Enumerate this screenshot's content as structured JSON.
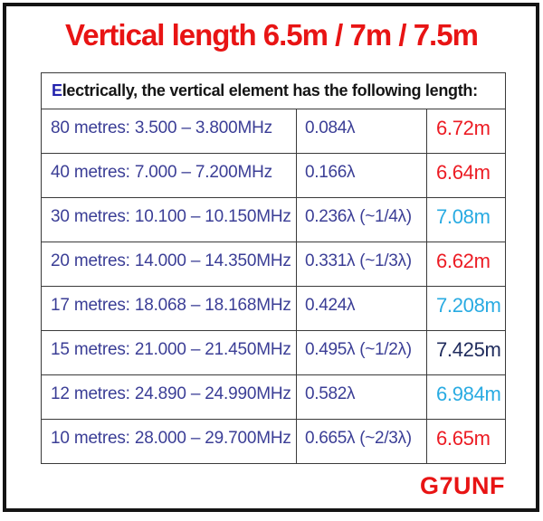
{
  "title": "Vertical length 6.5m / 7m / 7.5m",
  "header": {
    "first_letter": "E",
    "rest": "lectrically, the vertical element has the following length:"
  },
  "table": {
    "columns": [
      "band_and_frequency",
      "wavelength_fraction",
      "physical_length"
    ],
    "rows": [
      {
        "band": "80 metres: 3.500 – 3.800MHz",
        "lambda": "0.084λ",
        "length": "6.72m",
        "length_color": "#ec1c24"
      },
      {
        "band": "40 metres: 7.000 – 7.200MHz",
        "lambda": "0.166λ",
        "length": "6.64m",
        "length_color": "#ec1c24"
      },
      {
        "band": "30 metres: 10.100 – 10.150MHz",
        "lambda": "0.236λ (~1/4λ)",
        "length": "7.08m",
        "length_color": "#29abe2"
      },
      {
        "band": "20 metres: 14.000 – 14.350MHz",
        "lambda": "0.331λ (~1/3λ)",
        "length": "6.62m",
        "length_color": "#ec1c24"
      },
      {
        "band": "17 metres: 18.068 – 18.168MHz",
        "lambda": "0.424λ",
        "length": "7.208m",
        "length_color": "#29abe2"
      },
      {
        "band": "15 metres: 21.000 – 21.450MHz",
        "lambda": "0.495λ (~1/2λ)",
        "length": "7.425m",
        "length_color": "#1f2b5c"
      },
      {
        "band": "12 metres: 24.890 – 24.990MHz",
        "lambda": "0.582λ",
        "length": "6.984m",
        "length_color": "#29abe2"
      },
      {
        "band": "10 metres: 28.000 – 29.700MHz",
        "lambda": "0.665λ (~2/3λ)",
        "length": "6.65m",
        "length_color": "#ec1c24"
      }
    ]
  },
  "footer": {
    "callsign": "G7UNF"
  },
  "colors": {
    "title_red": "#e81414",
    "length_red": "#ec1c24",
    "length_cyan": "#29abe2",
    "length_navy": "#1f2b5c",
    "band_text": "#3b3e96",
    "header_initial_blue": "#2323ad",
    "frame_black": "#141414"
  }
}
